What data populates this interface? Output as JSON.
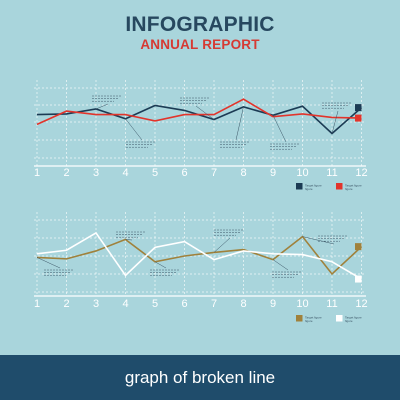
{
  "header": {
    "title": "INFOGRAPHIC",
    "subtitle": "ANNUAL REPORT"
  },
  "footer": {
    "caption": "graph of broken line"
  },
  "chart_data": [
    {
      "type": "line",
      "x": [
        1,
        2,
        3,
        4,
        5,
        6,
        7,
        8,
        9,
        10,
        11,
        12
      ],
      "series": [
        {
          "color": "#1c3b54",
          "values": [
            62,
            63,
            70,
            56,
            75,
            68,
            55,
            73,
            61,
            74,
            35,
            72
          ]
        },
        {
          "color": "#e2342b",
          "values": [
            48,
            67,
            62,
            62,
            53,
            62,
            62,
            84,
            59,
            63,
            58,
            57
          ]
        }
      ],
      "legend": [
        "Target figure",
        "Target figure"
      ],
      "legend_sub": [
        "figure",
        "figure"
      ],
      "legend_position": "bottom-right",
      "grid": true
    },
    {
      "type": "line",
      "x": [
        1,
        2,
        3,
        4,
        5,
        6,
        7,
        8,
        9,
        10,
        11,
        12
      ],
      "series": [
        {
          "color": "#a0813b",
          "values": [
            48,
            46,
            57,
            73,
            42,
            50,
            55,
            59,
            45,
            77,
            25,
            63
          ]
        },
        {
          "color": "#ffffff",
          "values": [
            53,
            58,
            82,
            23,
            62,
            70,
            45,
            57,
            53,
            52,
            42,
            18
          ]
        }
      ],
      "legend": [
        "Target figure",
        "Target figure"
      ],
      "legend_sub": [
        "figure",
        "figure"
      ],
      "legend_position": "bottom-right",
      "grid": true
    }
  ]
}
